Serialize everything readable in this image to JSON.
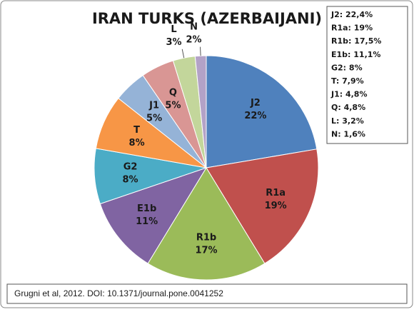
{
  "chart_data": {
    "type": "pie",
    "title": "IRAN TURKS (AZERBAIJANI)",
    "categories": [
      "J2",
      "R1a",
      "R1b",
      "E1b",
      "G2",
      "T",
      "J1",
      "Q",
      "L",
      "N"
    ],
    "values": [
      22.4,
      19,
      17.5,
      11.1,
      8,
      7.9,
      4.8,
      4.8,
      3.2,
      1.6
    ],
    "value_labels": [
      "22%",
      "19%",
      "17%",
      "11%",
      "8%",
      "8%",
      "5%",
      "5%",
      "3%",
      "2%"
    ],
    "colors": [
      "#4f81bd",
      "#c0504d",
      "#9bbb59",
      "#8064a2",
      "#4bacc6",
      "#f79646",
      "#95b3d7",
      "#d99694",
      "#c3d69b",
      "#b3a2c7"
    ],
    "legend_box": [
      "J2: 22,4%",
      "R1a: 19%",
      "R1b: 17,5%",
      "E1b: 11,1%",
      "G2: 8%",
      "T: 7,9%",
      "J1: 4,8%",
      "Q: 4,8%",
      "L: 3,2%",
      "N: 1,6%"
    ],
    "source": "Grugni et al, 2012.  DOI: 10.1371/journal.pone.0041252"
  }
}
